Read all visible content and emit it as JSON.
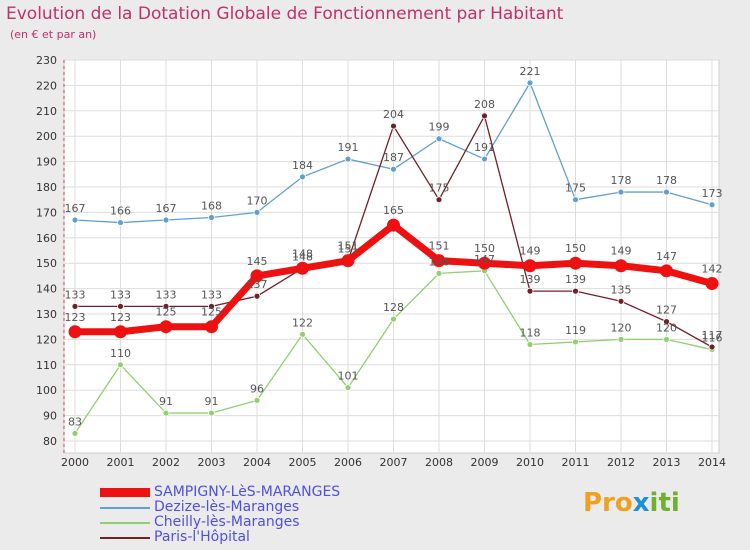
{
  "title": "Evolution de la Dotation Globale de Fonctionnement par Habitant",
  "subtitle": "(en € et par an)",
  "chart_data": {
    "type": "line",
    "x": [
      "2000",
      "2001",
      "2002",
      "2003",
      "2004",
      "2005",
      "2006",
      "2007",
      "2008",
      "2009",
      "2010",
      "2011",
      "2012",
      "2013",
      "2014"
    ],
    "ylim": [
      80,
      230
    ],
    "yticks": [
      80,
      90,
      100,
      110,
      120,
      130,
      140,
      150,
      160,
      170,
      180,
      190,
      200,
      210,
      220,
      230
    ],
    "series": [
      {
        "name": "Dezize-lès-Maranges",
        "color": "#5fa0d0",
        "values": [
          167,
          166,
          167,
          168,
          170,
          184,
          191,
          187,
          199,
          191,
          221,
          175,
          178,
          178,
          173
        ]
      },
      {
        "name": "Cheilly-lès-Maranges",
        "color": "#90d070",
        "values": [
          83,
          110,
          91,
          91,
          96,
          122,
          101,
          128,
          146,
          147,
          118,
          119,
          120,
          120,
          116
        ]
      },
      {
        "name": "Paris-l'Hôpital",
        "color": "#702028",
        "values": [
          133,
          133,
          133,
          133,
          137,
          148,
          151,
          204,
          175,
          208,
          139,
          139,
          135,
          127,
          117
        ]
      },
      {
        "name": "SAMPIGNY-LèS-MARANGES",
        "color": "#ee1111",
        "values": [
          123,
          123,
          125,
          125,
          145,
          148,
          151,
          165,
          151,
          150,
          149,
          150,
          149,
          147,
          142
        ]
      }
    ],
    "legend_order": [
      "SAMPIGNY-LèS-MARANGES",
      "Dezize-lès-Maranges",
      "Cheilly-lès-Maranges",
      "Paris-l'Hôpital"
    ],
    "legend_position": "bottom-left"
  },
  "logo": {
    "p1": "Pro",
    "p2": "x",
    "p3": "iti"
  }
}
